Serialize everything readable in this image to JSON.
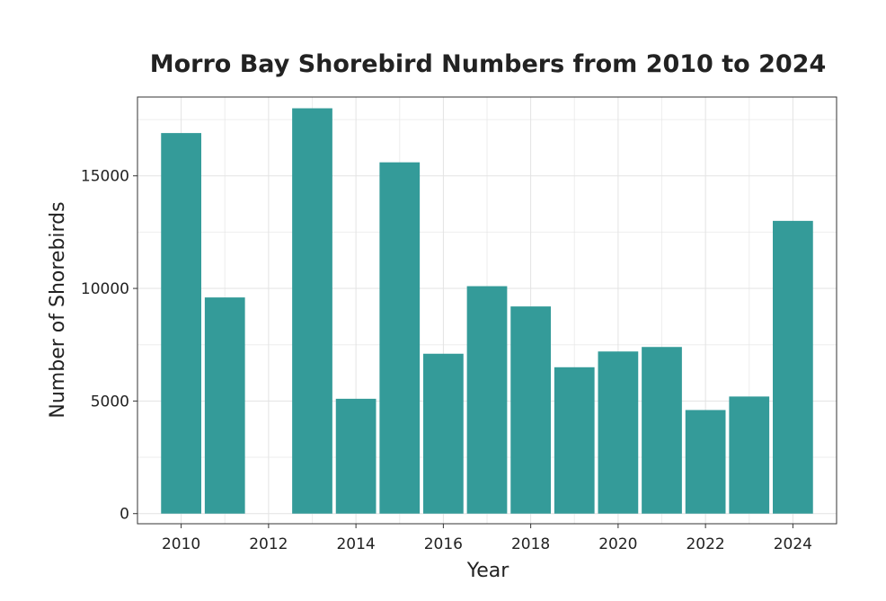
{
  "chart_data": {
    "type": "bar",
    "title": "Morro Bay Shorebird Numbers from 2010 to 2024",
    "xlabel": "Year",
    "ylabel": "Number of Shorebirds",
    "x": [
      2010,
      2011,
      2012,
      2013,
      2014,
      2015,
      2016,
      2017,
      2018,
      2019,
      2020,
      2021,
      2022,
      2023,
      2024
    ],
    "values": [
      16900,
      9600,
      0,
      18000,
      5100,
      15600,
      7100,
      10100,
      9200,
      6500,
      7200,
      7400,
      4600,
      5200,
      13000
    ],
    "xlim": [
      2009,
      2025
    ],
    "ylim": [
      -450,
      18500
    ],
    "x_ticks": [
      2010,
      2012,
      2014,
      2016,
      2018,
      2020,
      2022,
      2024
    ],
    "y_ticks": [
      0,
      5000,
      10000,
      15000
    ],
    "x_tick_labels": [
      "2010",
      "2012",
      "2014",
      "2016",
      "2018",
      "2020",
      "2022",
      "2024"
    ],
    "y_tick_labels": [
      "0",
      "5000",
      "10000",
      "15000"
    ],
    "grid": true,
    "bar_color": "#349b99"
  }
}
